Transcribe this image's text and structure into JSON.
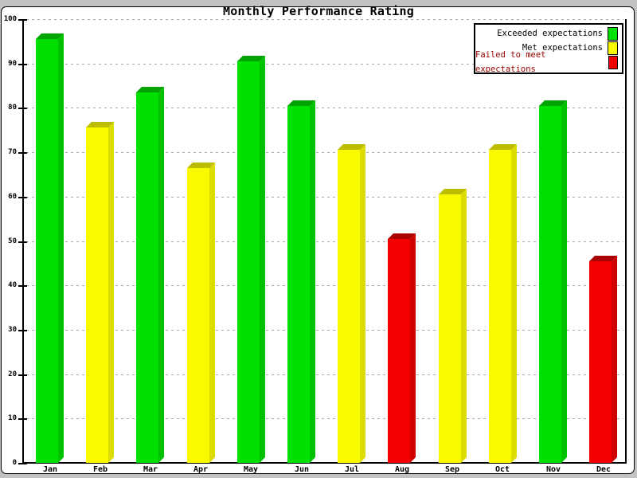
{
  "chart_data": {
    "type": "bar",
    "title": "Monthly Performance Rating",
    "categories": [
      "Jan",
      "Feb",
      "Mar",
      "Apr",
      "May",
      "Jun",
      "Jul",
      "Aug",
      "Sep",
      "Oct",
      "Nov",
      "Dec"
    ],
    "values": [
      95.5,
      75.5,
      83.5,
      66.5,
      90.5,
      80.5,
      70.5,
      50.5,
      60.5,
      70.5,
      80.5,
      45.5
    ],
    "bar_colors": [
      "green",
      "yellow",
      "green",
      "yellow",
      "green",
      "green",
      "yellow",
      "red",
      "yellow",
      "yellow",
      "green",
      "red"
    ],
    "colors": {
      "green": {
        "face": "#00E000",
        "top": "#00A300",
        "side": "#00C200"
      },
      "yellow": {
        "face": "#F9F900",
        "top": "#BDBD00",
        "side": "#DCDC00"
      },
      "red": {
        "face": "#F30000",
        "top": "#A90000",
        "side": "#CF0000"
      }
    },
    "xlabel": "",
    "ylabel": "",
    "ylim": [
      0,
      100
    ],
    "yticks": [
      0,
      10,
      20,
      30,
      40,
      50,
      60,
      70,
      80,
      90,
      100
    ],
    "grid": "horizontal-dashed",
    "gridline_color": "#ababab",
    "legend_position": "top-right"
  },
  "legend": {
    "items": [
      {
        "label": "Exceeded expectations",
        "color": "#00E000",
        "text_color": "#000000"
      },
      {
        "label": "Met expectations",
        "color": "#F9F900",
        "text_color": "#000000"
      },
      {
        "label": "Failed to meet expectations",
        "color": "#F30000",
        "text_color": "#990000"
      }
    ]
  }
}
